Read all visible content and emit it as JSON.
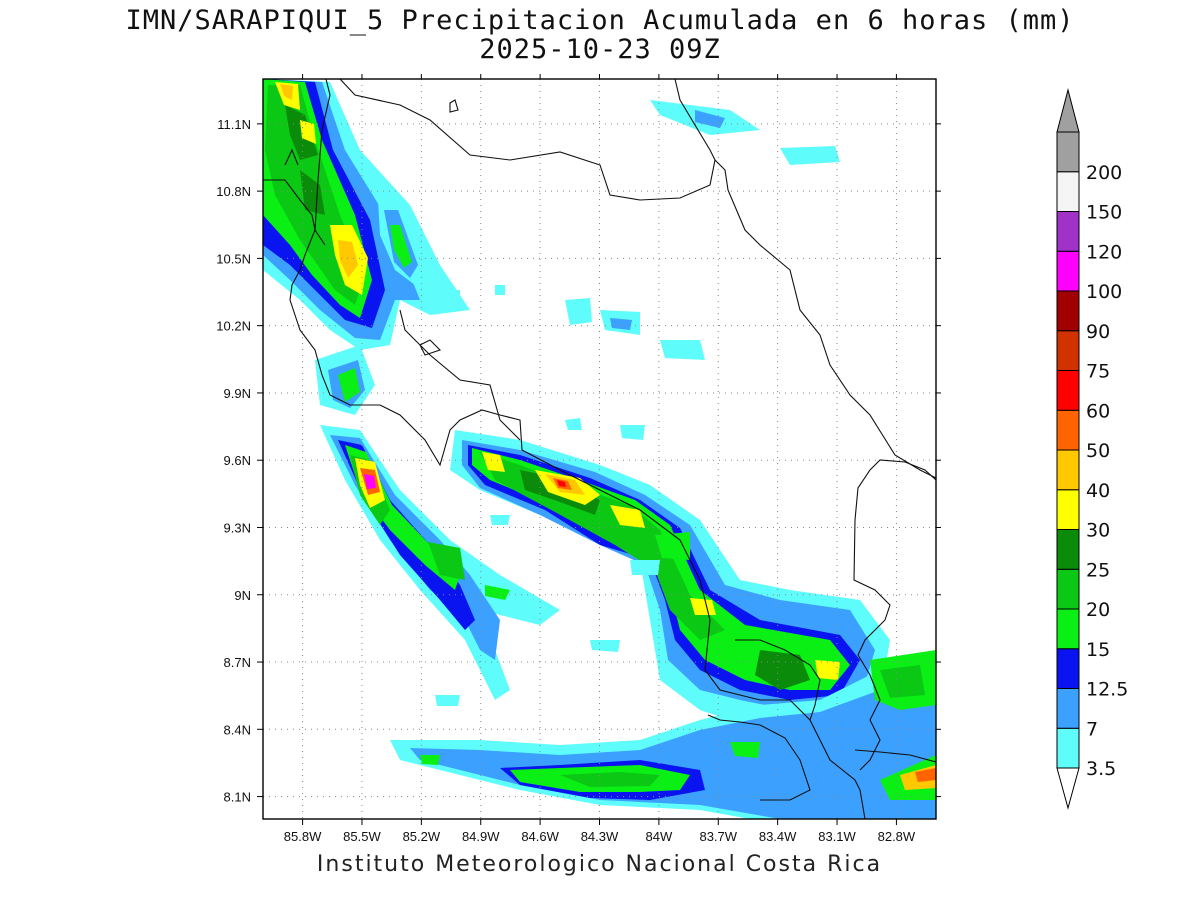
{
  "title": {
    "line1": "IMN/SARAPIQUI_5 Precipitacion Acumulada en 6 horas (mm)",
    "line2": "2025-10-23 09Z"
  },
  "footer": "Instituto Meteorologico Nacional Costa Rica",
  "map": {
    "lon_range": [
      -86.0,
      -82.6
    ],
    "lat_range": [
      8.0,
      11.3
    ],
    "x_ticks": [
      {
        "value": -85.8,
        "label": "85.8W"
      },
      {
        "value": -85.5,
        "label": "85.5W"
      },
      {
        "value": -85.2,
        "label": "85.2W"
      },
      {
        "value": -84.9,
        "label": "84.9W"
      },
      {
        "value": -84.6,
        "label": "84.6W"
      },
      {
        "value": -84.3,
        "label": "84.3W"
      },
      {
        "value": -84.0,
        "label": "84W"
      },
      {
        "value": -83.7,
        "label": "83.7W"
      },
      {
        "value": -83.4,
        "label": "83.4W"
      },
      {
        "value": -83.1,
        "label": "83.1W"
      },
      {
        "value": -82.8,
        "label": "82.8W"
      }
    ],
    "y_ticks": [
      {
        "value": 11.1,
        "label": "11.1N"
      },
      {
        "value": 10.8,
        "label": "10.8N"
      },
      {
        "value": 10.5,
        "label": "10.5N"
      },
      {
        "value": 10.2,
        "label": "10.2N"
      },
      {
        "value": 9.9,
        "label": "9.9N"
      },
      {
        "value": 9.6,
        "label": "9.6N"
      },
      {
        "value": 9.3,
        "label": "9.3N"
      },
      {
        "value": 9.0,
        "label": "9N"
      },
      {
        "value": 8.7,
        "label": "8.7N"
      },
      {
        "value": 8.4,
        "label": "8.4N"
      },
      {
        "value": 8.1,
        "label": "8.1N"
      }
    ],
    "grid": "dotted"
  },
  "colorbar": {
    "levels": [
      {
        "label": "3.5",
        "color": "#5ffcfc"
      },
      {
        "label": "7",
        "color": "#3ca0ff"
      },
      {
        "label": "12.5",
        "color": "#0a14f0"
      },
      {
        "label": "15",
        "color": "#0af014"
      },
      {
        "label": "20",
        "color": "#0ac814"
      },
      {
        "label": "25",
        "color": "#0a8c0a"
      },
      {
        "label": "30",
        "color": "#ffff00"
      },
      {
        "label": "40",
        "color": "#ffc800"
      },
      {
        "label": "50",
        "color": "#ff6400"
      },
      {
        "label": "60",
        "color": "#ff0000"
      },
      {
        "label": "75",
        "color": "#d23200"
      },
      {
        "label": "90",
        "color": "#a00000"
      },
      {
        "label": "100",
        "color": "#ff00ff"
      },
      {
        "label": "120",
        "color": "#a032c8"
      },
      {
        "label": "150",
        "color": "#f5f5f5"
      },
      {
        "label": "200",
        "color": "#a0a0a0"
      }
    ],
    "under_color": "#ffffff",
    "over_color": "#a0a0a0"
  }
}
